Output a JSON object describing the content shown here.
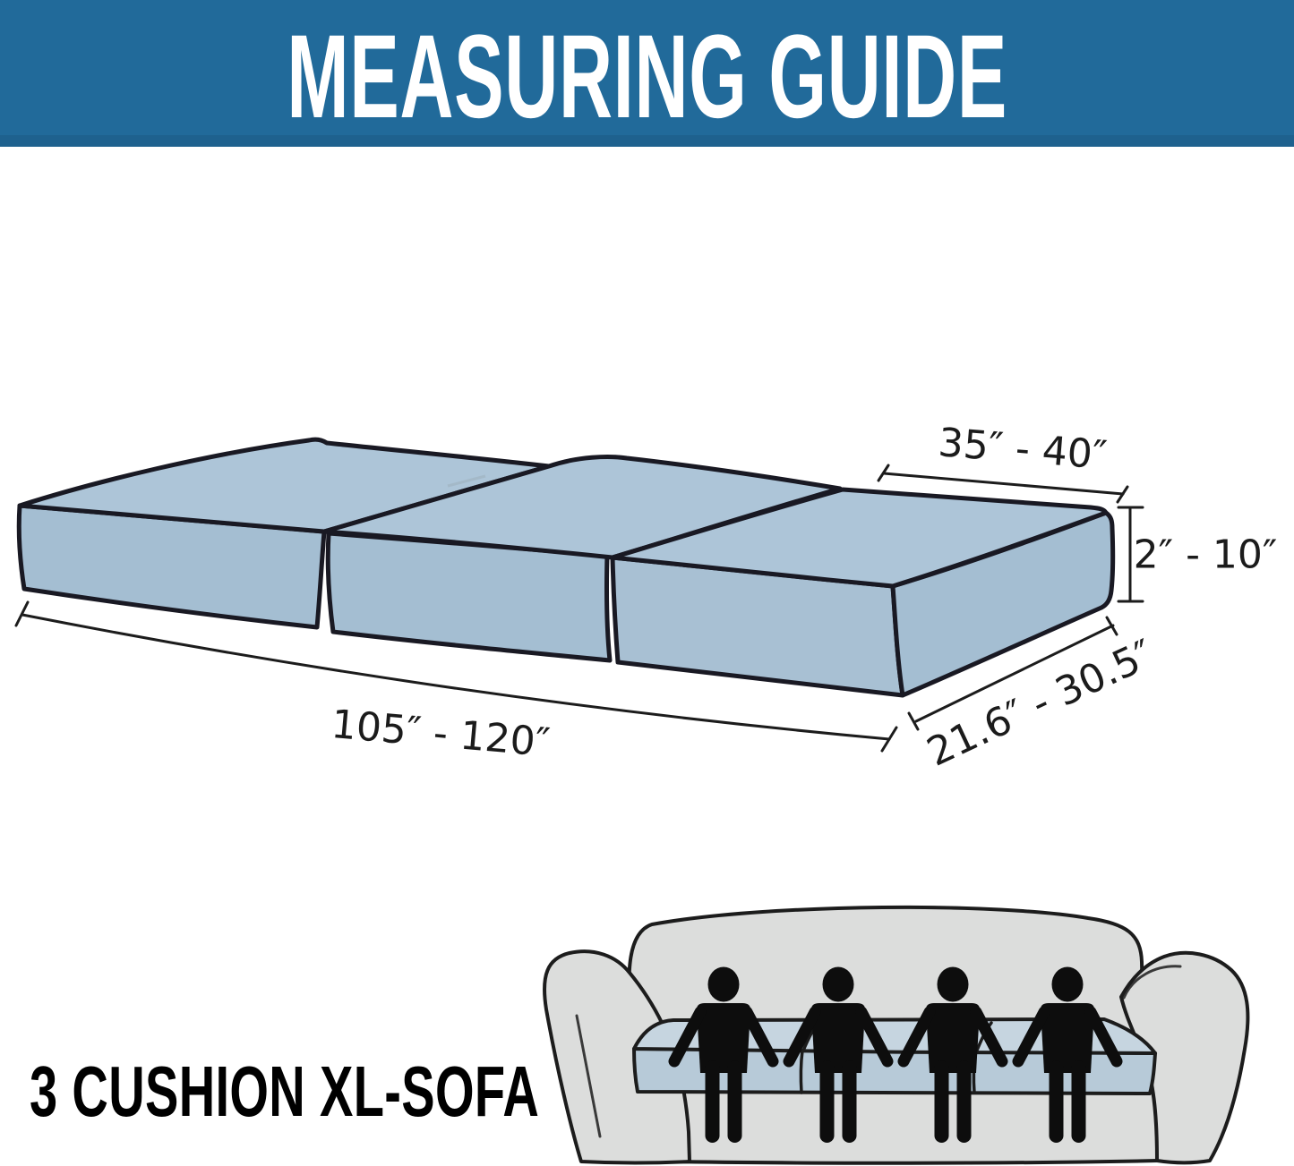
{
  "banner": {
    "title": "MEASURING GUIDE"
  },
  "diagram": {
    "dim_width": {
      "label": "35″ - 40″"
    },
    "dim_height": {
      "label": "2″ - 10″"
    },
    "dim_length": {
      "label": "105″ - 120″"
    },
    "dim_depth": {
      "label": "21.6″ - 30.5″"
    }
  },
  "footer": {
    "product_label": "3 CUSHION XL-SOFA",
    "sofa": {
      "person_count": 4
    }
  },
  "colors": {
    "banner_bg": "#216a9a",
    "banner_shade": "#1e618e",
    "banner_text": "#ffffff",
    "ink": "#191923",
    "ink2": "#1c1c1c",
    "cushion_top": "#adc5d8",
    "cushion_front": "#a4bed2",
    "cushion_side": "#a8c0d3",
    "sofa_gray": "#dcdddc",
    "slab_top": "#c6d5e0",
    "slab_front": "#b7cad8",
    "person": "#0d0d0d",
    "text": "#1b1b1b"
  }
}
